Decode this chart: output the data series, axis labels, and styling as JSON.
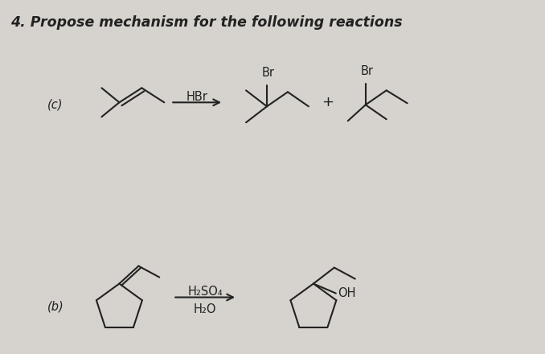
{
  "title": "4. Propose mechanism for the following reactions",
  "title_fontsize": 12.5,
  "bg_color": "#d6d3ce",
  "text_color": "#222222",
  "label_c": "(c)",
  "label_b": "(b)",
  "reagent_c": "HBr",
  "reagent_b_top": "H₂SO₄",
  "reagent_b_bot": "H₂O",
  "plus_sign": "+",
  "br_label": "Br",
  "oh_label": "OH",
  "line_width": 1.5,
  "font_size": 10.5
}
